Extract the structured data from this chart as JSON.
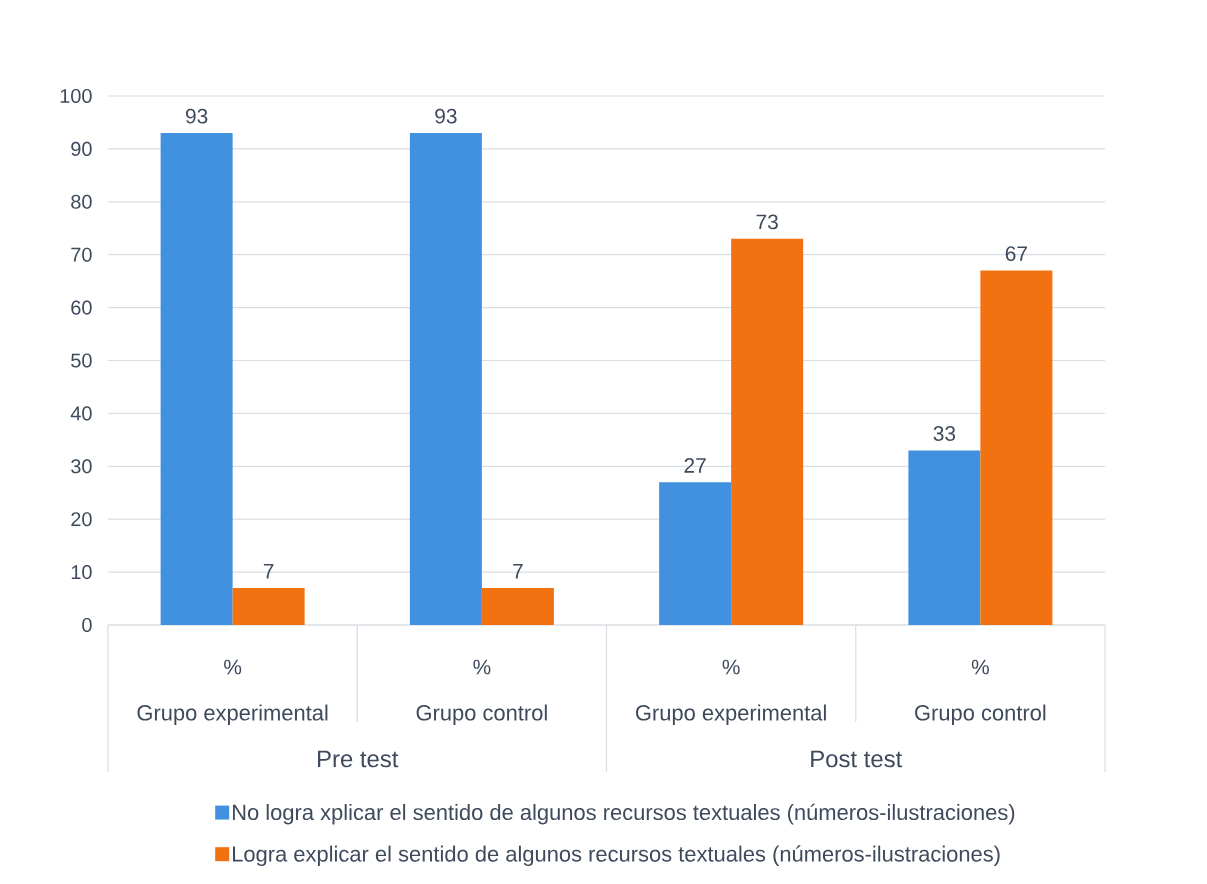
{
  "chart_data": {
    "type": "bar",
    "categories": [
      "Grupo experimental",
      "Grupo control",
      "Grupo experimental",
      "Grupo control"
    ],
    "series": [
      {
        "name": "No logra xplicar el sentido de algunos recursos textuales (números-ilustraciones)",
        "color": "#4191e0",
        "values": [
          93,
          93,
          27,
          33
        ]
      },
      {
        "name": "Logra explicar el sentido de algunos recursos textuales (números-ilustraciones)",
        "color": "#f27212",
        "values": [
          7,
          7,
          73,
          67
        ]
      }
    ],
    "ylim": [
      0,
      100
    ],
    "yticks": [
      0,
      10,
      20,
      30,
      40,
      50,
      60,
      70,
      80,
      90,
      100
    ],
    "grid": "y",
    "legend": "bottom",
    "data_labels": true,
    "annotations": [
      "%",
      "%",
      "%",
      "%",
      "Pre test",
      "Post test"
    ]
  }
}
